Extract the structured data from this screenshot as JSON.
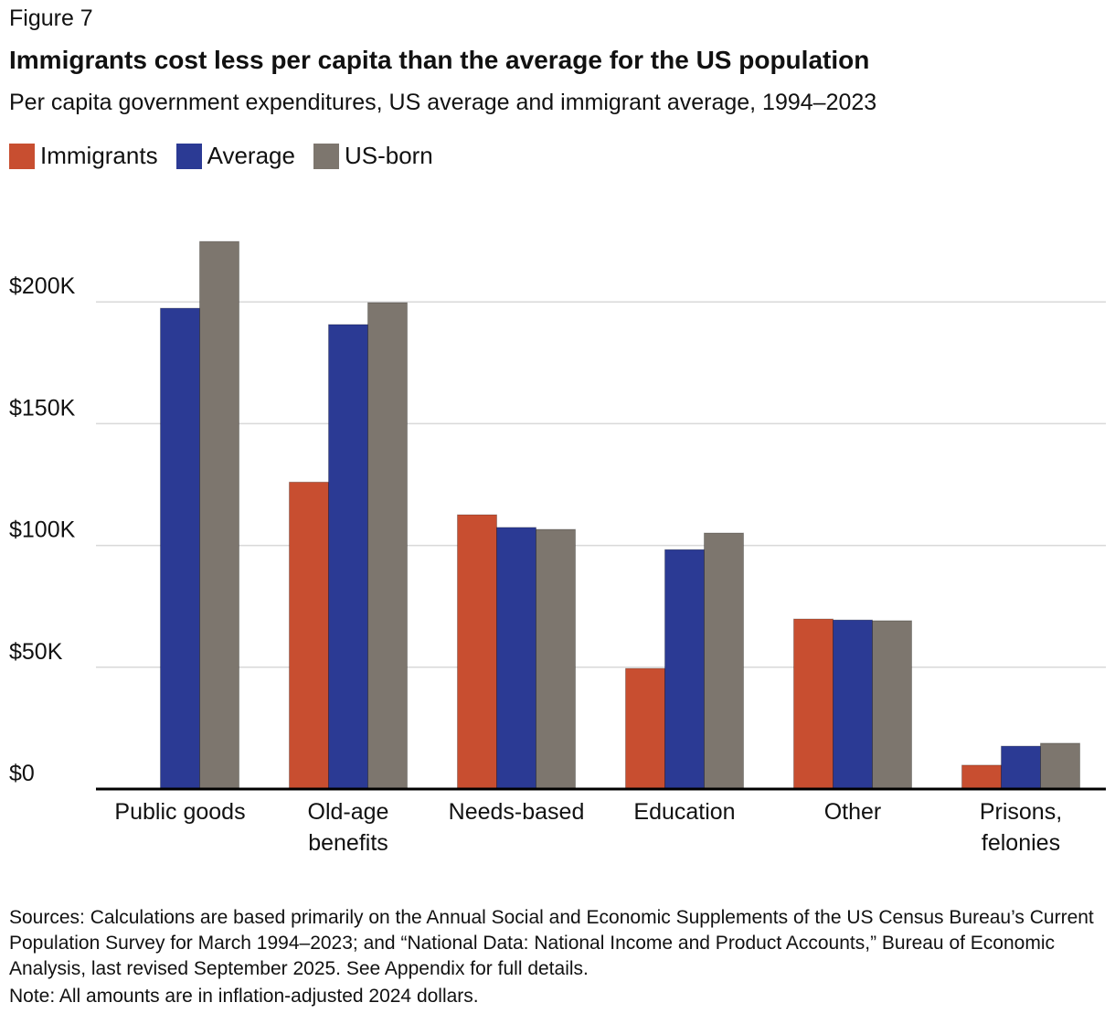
{
  "figure_label": "Figure 7",
  "chart_data": {
    "type": "bar",
    "title": "Immigrants cost less per capita than the average for the US population",
    "subtitle": "Per capita government expenditures, US average and immigrant average, 1994–2023",
    "categories": [
      [
        "Public goods"
      ],
      [
        "Old-age",
        "benefits"
      ],
      [
        "Needs-based"
      ],
      [
        "Education"
      ],
      [
        "Other"
      ],
      [
        "Prisons,",
        "felonies"
      ]
    ],
    "series": [
      {
        "name": "Immigrants",
        "color": "#c84e30",
        "values": [
          0,
          126,
          112.6,
          49.5,
          69.8,
          9.8
        ]
      },
      {
        "name": "Average",
        "color": "#2b3a94",
        "values": [
          197.4,
          190.7,
          107.4,
          98.3,
          69.4,
          17.6
        ]
      },
      {
        "name": "US-born",
        "color": "#7d766e",
        "values": [
          224.8,
          199.7,
          106.6,
          105.1,
          69.1,
          18.8
        ]
      }
    ],
    "unit": "thousands of 2024 dollars",
    "yticks": [
      0,
      50,
      100,
      150,
      200
    ],
    "ytick_labels": [
      "$0",
      "$50K",
      "$100K",
      "$150K",
      "$200K"
    ],
    "ylim": [
      0,
      235
    ],
    "grid": true,
    "legend_placement": "top-left"
  },
  "sources": "Sources: Calculations are based primarily on the Annual Social and Economic Supplements of the US Census Bureau’s Current Population Survey for March 1994–2023; and “National Data: National Income and Product Accounts,” Bureau of Economic Analysis, last revised September 2025. See Appendix for full details.",
  "note": "Note: All amounts are in inflation-adjusted 2024 dollars."
}
